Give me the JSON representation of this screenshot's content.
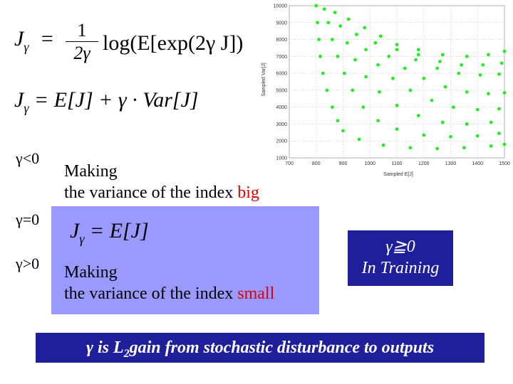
{
  "formulas": {
    "f1_lhs": "J",
    "f1_lhs_sub": "γ",
    "f1_eq": "=",
    "f1_num": "1",
    "f1_den": "2γ",
    "f1_rhs": "log(E[exp(2γ J])",
    "f2_lhs": "J",
    "f2_lhs_sub": "γ",
    "f2_rhs": "= E[J] + γ · Var[J]",
    "f3_lhs": "J",
    "f3_lhs_sub": "γ",
    "f3_rhs": "= E[J]"
  },
  "cases": {
    "neg_label": "γ<0",
    "neg_line1": "Making",
    "neg_line2_prefix": "the variance of the index ",
    "neg_line2_emph": "big",
    "zero_label": "γ=0",
    "pos_label": "γ>0",
    "pos_line1": "Making",
    "pos_line2_prefix": "the variance of the index ",
    "pos_line2_emph": "small"
  },
  "training_box": {
    "line1": "γ≧0",
    "line2": "In Training"
  },
  "footer": {
    "prefix": "γ  is L",
    "subscript": "2",
    "suffix": "gain from stochastic disturbance to outputs"
  },
  "colors": {
    "panel": "#9999ff",
    "box": "#1f1f9c",
    "emphasis": "#e00000",
    "points": "#22ee22"
  },
  "chart_data": {
    "type": "scatter",
    "xlabel": "Sampled E[J]",
    "ylabel": "Sampled Var[J]",
    "xlim": [
      700,
      1500
    ],
    "ylim": [
      1000,
      10000
    ],
    "x_ticks": [
      "700",
      "800",
      "900",
      "1000",
      "1100",
      "1200",
      "1300",
      "1400",
      "1500"
    ],
    "y_ticks": [
      "1000",
      "2000",
      "3000",
      "4000",
      "5000",
      "6000",
      "7000",
      "8000",
      "9000",
      "10000"
    ],
    "grid": true,
    "series": [
      {
        "points": [
          [
            800,
            10000
          ],
          [
            805,
            9000
          ],
          [
            810,
            8000
          ],
          [
            815,
            7000
          ],
          [
            825,
            6000
          ],
          [
            840,
            5000
          ],
          [
            860,
            4000
          ],
          [
            880,
            3200
          ],
          [
            900,
            2600
          ],
          [
            960,
            2100
          ],
          [
            1050,
            1750
          ],
          [
            1150,
            1600
          ],
          [
            1250,
            1550
          ],
          [
            1350,
            1600
          ],
          [
            1450,
            1700
          ],
          [
            1500,
            1800
          ],
          [
            830,
            9800
          ],
          [
            845,
            9000
          ],
          [
            860,
            8000
          ],
          [
            880,
            7000
          ],
          [
            905,
            6000
          ],
          [
            935,
            5000
          ],
          [
            975,
            4000
          ],
          [
            1030,
            3200
          ],
          [
            1100,
            2700
          ],
          [
            1200,
            2350
          ],
          [
            1300,
            2250
          ],
          [
            1400,
            2300
          ],
          [
            1480,
            2450
          ],
          [
            870,
            9600
          ],
          [
            890,
            8800
          ],
          [
            915,
            7800
          ],
          [
            945,
            6800
          ],
          [
            985,
            5800
          ],
          [
            1035,
            4900
          ],
          [
            1100,
            4100
          ],
          [
            1180,
            3500
          ],
          [
            1270,
            3100
          ],
          [
            1360,
            3000
          ],
          [
            1450,
            3100
          ],
          [
            920,
            9200
          ],
          [
            950,
            8300
          ],
          [
            985,
            7400
          ],
          [
            1030,
            6500
          ],
          [
            1085,
            5700
          ],
          [
            1150,
            5000
          ],
          [
            1230,
            4400
          ],
          [
            1310,
            4000
          ],
          [
            1400,
            3850
          ],
          [
            1480,
            3900
          ],
          [
            980,
            8700
          ],
          [
            1020,
            7800
          ],
          [
            1070,
            7000
          ],
          [
            1130,
            6300
          ],
          [
            1200,
            5700
          ],
          [
            1280,
            5200
          ],
          [
            1360,
            4900
          ],
          [
            1440,
            4800
          ],
          [
            1500,
            4850
          ],
          [
            1040,
            8200
          ],
          [
            1100,
            7400
          ],
          [
            1170,
            6800
          ],
          [
            1250,
            6300
          ],
          [
            1330,
            6000
          ],
          [
            1410,
            5900
          ],
          [
            1480,
            5950
          ],
          [
            1100,
            7700
          ],
          [
            1180,
            7100
          ],
          [
            1260,
            6700
          ],
          [
            1340,
            6500
          ],
          [
            1420,
            6500
          ],
          [
            1490,
            6600
          ],
          [
            1180,
            7400
          ],
          [
            1270,
            7100
          ],
          [
            1360,
            7000
          ],
          [
            1440,
            7100
          ],
          [
            1500,
            7300
          ]
        ]
      }
    ]
  }
}
